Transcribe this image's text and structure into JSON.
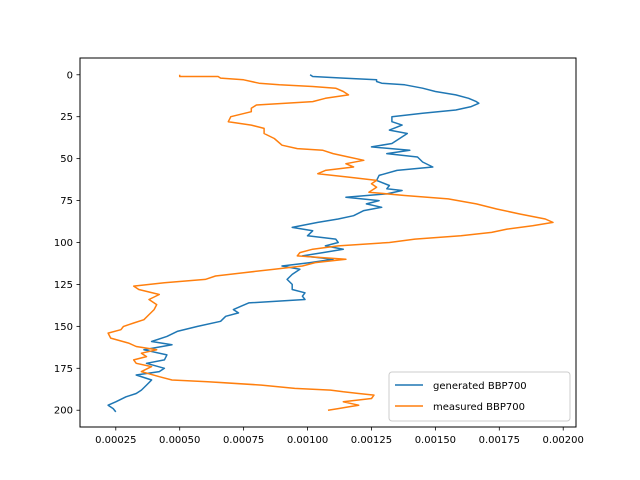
{
  "chart_data": {
    "type": "line",
    "title": "",
    "xlabel": "",
    "ylabel": "",
    "xlim": [
      0.00011,
      0.00205
    ],
    "ylim": [
      210,
      -10
    ],
    "y_inverted": true,
    "grid": false,
    "legend_placement": "lower-right",
    "xticks": [
      0.00025,
      0.0005,
      0.00075,
      0.001,
      0.00125,
      0.0015,
      0.00175,
      0.002
    ],
    "xtick_labels": [
      "0.00025",
      "0.00050",
      "0.00075",
      "0.00100",
      "0.00125",
      "0.00150",
      "0.00175",
      "0.00200"
    ],
    "yticks": [
      0,
      25,
      50,
      75,
      100,
      125,
      150,
      175,
      200
    ],
    "ytick_labels": [
      "0",
      "25",
      "50",
      "75",
      "100",
      "125",
      "150",
      "175",
      "200"
    ],
    "series": [
      {
        "name": "generated BBP700",
        "color": "#1f77b4",
        "points": [
          [
            0.00101,
            0
          ],
          [
            0.00102,
            1
          ],
          [
            0.00114,
            2
          ],
          [
            0.00127,
            3
          ],
          [
            0.00127,
            4
          ],
          [
            0.00129,
            5
          ],
          [
            0.00138,
            6
          ],
          [
            0.00145,
            8
          ],
          [
            0.0015,
            10
          ],
          [
            0.00158,
            12
          ],
          [
            0.00163,
            14
          ],
          [
            0.00166,
            16
          ],
          [
            0.00167,
            17
          ],
          [
            0.00164,
            19
          ],
          [
            0.00158,
            21
          ],
          [
            0.00145,
            23
          ],
          [
            0.00133,
            25
          ],
          [
            0.00133,
            28
          ],
          [
            0.00137,
            30
          ],
          [
            0.00132,
            33
          ],
          [
            0.00139,
            35
          ],
          [
            0.00136,
            38
          ],
          [
            0.00133,
            41
          ],
          [
            0.00125,
            43
          ],
          [
            0.0014,
            45
          ],
          [
            0.00131,
            47
          ],
          [
            0.00143,
            49
          ],
          [
            0.00145,
            52
          ],
          [
            0.00149,
            55
          ],
          [
            0.00135,
            57
          ],
          [
            0.00128,
            60
          ],
          [
            0.00127,
            63
          ],
          [
            0.00132,
            66
          ],
          [
            0.00131,
            68
          ],
          [
            0.00137,
            69
          ],
          [
            0.00131,
            71
          ],
          [
            0.00115,
            73
          ],
          [
            0.00128,
            75
          ],
          [
            0.00123,
            77
          ],
          [
            0.00129,
            79
          ],
          [
            0.00122,
            81
          ],
          [
            0.00118,
            84
          ],
          [
            0.00112,
            86
          ],
          [
            0.00104,
            88
          ],
          [
            0.00094,
            91
          ],
          [
            0.00102,
            93
          ],
          [
            0.001,
            96
          ],
          [
            0.00111,
            98
          ],
          [
            0.00112,
            100
          ],
          [
            0.00107,
            102
          ],
          [
            0.00114,
            104
          ],
          [
            0.00106,
            106
          ],
          [
            0.00098,
            108
          ],
          [
            0.0011,
            110
          ],
          [
            0.00101,
            112
          ],
          [
            0.0009,
            114
          ],
          [
            0.00097,
            116
          ],
          [
            0.00094,
            119
          ],
          [
            0.00092,
            122
          ],
          [
            0.00094,
            125
          ],
          [
            0.00094,
            128
          ],
          [
            0.00099,
            130
          ],
          [
            0.00098,
            132
          ],
          [
            0.00099,
            134
          ],
          [
            0.00077,
            136
          ],
          [
            0.00074,
            138
          ],
          [
            0.00071,
            140
          ],
          [
            0.00073,
            142
          ],
          [
            0.00068,
            144
          ],
          [
            0.00066,
            147
          ],
          [
            0.00057,
            150
          ],
          [
            0.00049,
            153
          ],
          [
            0.00045,
            156
          ],
          [
            0.00039,
            159
          ],
          [
            0.00047,
            161
          ],
          [
            0.00036,
            164
          ],
          [
            0.00045,
            167
          ],
          [
            0.00044,
            170
          ],
          [
            0.00037,
            172
          ],
          [
            0.00044,
            175
          ],
          [
            0.00042,
            177
          ],
          [
            0.00033,
            179
          ],
          [
            0.00039,
            182
          ],
          [
            0.00037,
            185
          ],
          [
            0.00035,
            188
          ],
          [
            0.00033,
            190
          ],
          [
            0.00029,
            192
          ],
          [
            0.00025,
            195
          ],
          [
            0.00022,
            197
          ],
          [
            0.00024,
            199
          ],
          [
            0.00025,
            201
          ]
        ]
      },
      {
        "name": "measured BBP700",
        "color": "#ff7f0e",
        "points": [
          [
            0.0005,
            0
          ],
          [
            0.0005,
            1
          ],
          [
            0.00065,
            1
          ],
          [
            0.00066,
            2
          ],
          [
            0.00075,
            3
          ],
          [
            0.00081,
            5
          ],
          [
            0.00089,
            6
          ],
          [
            0.00102,
            7
          ],
          [
            0.00111,
            8
          ],
          [
            0.00114,
            10
          ],
          [
            0.00116,
            12
          ],
          [
            0.00107,
            14
          ],
          [
            0.00102,
            16
          ],
          [
            0.0008,
            18
          ],
          [
            0.00078,
            20
          ],
          [
            0.00078,
            22
          ],
          [
            0.0007,
            25
          ],
          [
            0.00069,
            28
          ],
          [
            0.00078,
            30
          ],
          [
            0.00083,
            32
          ],
          [
            0.00083,
            35
          ],
          [
            0.00087,
            38
          ],
          [
            0.0009,
            42
          ],
          [
            0.00096,
            44
          ],
          [
            0.00106,
            45
          ],
          [
            0.0011,
            47
          ],
          [
            0.00116,
            49
          ],
          [
            0.00122,
            51
          ],
          [
            0.00115,
            53
          ],
          [
            0.00118,
            55
          ],
          [
            0.00107,
            57
          ],
          [
            0.00104,
            59
          ],
          [
            0.00116,
            61
          ],
          [
            0.00127,
            63
          ],
          [
            0.00125,
            65
          ],
          [
            0.00127,
            67
          ],
          [
            0.00124,
            70
          ],
          [
            0.00138,
            72
          ],
          [
            0.00155,
            74
          ],
          [
            0.00166,
            77
          ],
          [
            0.00174,
            80
          ],
          [
            0.00183,
            83
          ],
          [
            0.00193,
            86
          ],
          [
            0.00196,
            88
          ],
          [
            0.00188,
            90
          ],
          [
            0.00178,
            92
          ],
          [
            0.00172,
            94
          ],
          [
            0.0016,
            96
          ],
          [
            0.00142,
            98
          ],
          [
            0.00132,
            100
          ],
          [
            0.00112,
            102
          ],
          [
            0.00102,
            104
          ],
          [
            0.00097,
            106
          ],
          [
            0.00096,
            108
          ],
          [
            0.00115,
            110
          ],
          [
            0.00103,
            112
          ],
          [
            0.00098,
            114
          ],
          [
            0.00087,
            116
          ],
          [
            0.00075,
            118
          ],
          [
            0.00064,
            120
          ],
          [
            0.0006,
            122
          ],
          [
            0.00044,
            124
          ],
          [
            0.00032,
            126
          ],
          [
            0.00034,
            128
          ],
          [
            0.00042,
            131
          ],
          [
            0.00038,
            134
          ],
          [
            0.00041,
            137
          ],
          [
            0.0004,
            140
          ],
          [
            0.00038,
            143
          ],
          [
            0.00036,
            146
          ],
          [
            0.00032,
            148
          ],
          [
            0.00028,
            150
          ],
          [
            0.00027,
            152
          ],
          [
            0.00022,
            154
          ],
          [
            0.00023,
            157
          ],
          [
            0.0003,
            160
          ],
          [
            0.00033,
            162
          ],
          [
            0.00041,
            164
          ],
          [
            0.00035,
            166
          ],
          [
            0.00037,
            168
          ],
          [
            0.00032,
            170
          ],
          [
            0.00033,
            172
          ],
          [
            0.00039,
            174
          ],
          [
            0.00035,
            177
          ],
          [
            0.00042,
            180
          ],
          [
            0.00047,
            182
          ],
          [
            0.00061,
            183
          ],
          [
            0.00082,
            185
          ],
          [
            0.00095,
            187
          ],
          [
            0.00109,
            188
          ],
          [
            0.00114,
            189
          ],
          [
            0.0012,
            190
          ],
          [
            0.00126,
            191
          ],
          [
            0.00125,
            193
          ],
          [
            0.00114,
            195
          ],
          [
            0.0012,
            197
          ],
          [
            0.00116,
            198
          ],
          [
            0.00112,
            199
          ],
          [
            0.00108,
            200
          ]
        ]
      }
    ]
  }
}
